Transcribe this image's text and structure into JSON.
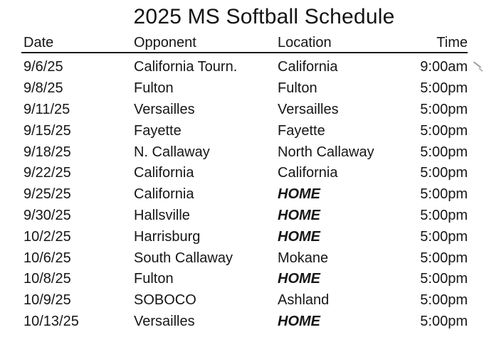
{
  "title": "2025 MS Softball Schedule",
  "table": {
    "headers": [
      "Date",
      "Opponent",
      "Location",
      "Time"
    ],
    "rows": [
      {
        "date": "9/6/25",
        "opponent": "California Tourn.",
        "location": "California",
        "home": false,
        "time": "9:00am"
      },
      {
        "date": "9/8/25",
        "opponent": "Fulton",
        "location": "Fulton",
        "home": false,
        "time": "5:00pm"
      },
      {
        "date": "9/11/25",
        "opponent": "Versailles",
        "location": "Versailles",
        "home": false,
        "time": "5:00pm"
      },
      {
        "date": "9/15/25",
        "opponent": "Fayette",
        "location": "Fayette",
        "home": false,
        "time": "5:00pm"
      },
      {
        "date": "9/18/25",
        "opponent": "N. Callaway",
        "location": "North Callaway",
        "home": false,
        "time": "5:00pm"
      },
      {
        "date": "9/22/25",
        "opponent": "California",
        "location": "California",
        "home": false,
        "time": "5:00pm"
      },
      {
        "date": "9/25/25",
        "opponent": "California",
        "location": "HOME",
        "home": true,
        "time": "5:00pm"
      },
      {
        "date": "9/30/25",
        "opponent": "Hallsville",
        "location": "HOME",
        "home": true,
        "time": "5:00pm"
      },
      {
        "date": "10/2/25",
        "opponent": "Harrisburg",
        "location": "HOME",
        "home": true,
        "time": "5:00pm"
      },
      {
        "date": "10/6/25",
        "opponent": "South Callaway",
        "location": "Mokane",
        "home": false,
        "time": "5:00pm"
      },
      {
        "date": "10/8/25",
        "opponent": "Fulton",
        "location": "HOME",
        "home": true,
        "time": "5:00pm"
      },
      {
        "date": "10/9/25",
        "opponent": "SOBOCO",
        "location": "Ashland",
        "home": false,
        "time": "5:00pm"
      },
      {
        "date": "10/13/25",
        "opponent": "Versailles",
        "location": "HOME",
        "home": true,
        "time": "5:00pm"
      }
    ]
  }
}
